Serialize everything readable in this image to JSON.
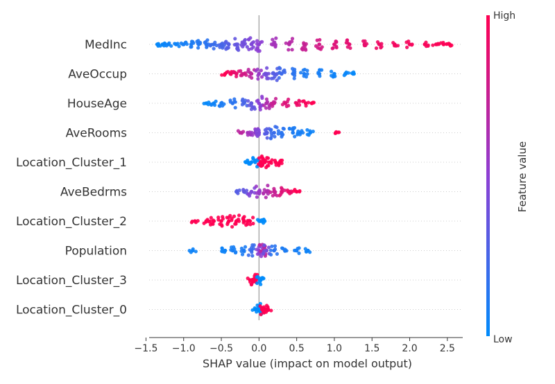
{
  "chart_data": {
    "type": "scatter",
    "subtype": "shap-beeswarm",
    "title": "",
    "xlabel": "SHAP value (impact on model output)",
    "ylabel": "",
    "xlim": [
      -1.55,
      2.75
    ],
    "xticks": [
      {
        "value": -1.5,
        "label": "−1.5"
      },
      {
        "value": -1.0,
        "label": "−1.0"
      },
      {
        "value": -0.5,
        "label": "−0.5"
      },
      {
        "value": 0.0,
        "label": "0.0"
      },
      {
        "value": 0.5,
        "label": "0.5"
      },
      {
        "value": 1.0,
        "label": "1.0"
      },
      {
        "value": 1.5,
        "label": "1.5"
      },
      {
        "value": 2.0,
        "label": "2.0"
      },
      {
        "value": 2.5,
        "label": "2.5"
      }
    ],
    "grid": false,
    "zero_line": true,
    "colorbar": {
      "label": "Feature value",
      "high_label": "High",
      "low_label": "Low",
      "low_color": "#008bfb",
      "mid_color": "#8d3fd4",
      "high_color": "#ff0052"
    },
    "features": [
      {
        "name": "MedInc",
        "points": [
          {
            "shap": -1.35,
            "value": 0.02
          },
          {
            "shap": -1.28,
            "value": 0.03
          },
          {
            "shap": -1.2,
            "value": 0.05
          },
          {
            "shap": -1.1,
            "value": 0.05
          },
          {
            "shap": -1.0,
            "value": 0.08
          },
          {
            "shap": -0.9,
            "value": 0.1
          },
          {
            "shap": -0.8,
            "value": 0.12
          },
          {
            "shap": -0.7,
            "value": 0.15
          },
          {
            "shap": -0.6,
            "value": 0.2
          },
          {
            "shap": -0.5,
            "value": 0.25
          },
          {
            "shap": -0.4,
            "value": 0.3
          },
          {
            "shap": -0.3,
            "value": 0.35
          },
          {
            "shap": -0.2,
            "value": 0.4
          },
          {
            "shap": -0.1,
            "value": 0.45
          },
          {
            "shap": 0.0,
            "value": 0.5
          },
          {
            "shap": 0.2,
            "value": 0.6
          },
          {
            "shap": 0.4,
            "value": 0.68
          },
          {
            "shap": 0.6,
            "value": 0.75
          },
          {
            "shap": 0.8,
            "value": 0.8
          },
          {
            "shap": 1.0,
            "value": 0.85
          },
          {
            "shap": 1.2,
            "value": 0.88
          },
          {
            "shap": 1.4,
            "value": 0.9
          },
          {
            "shap": 1.6,
            "value": 0.93
          },
          {
            "shap": 1.8,
            "value": 0.95
          },
          {
            "shap": 2.0,
            "value": 0.96
          },
          {
            "shap": 2.2,
            "value": 0.97
          },
          {
            "shap": 2.35,
            "value": 0.98
          },
          {
            "shap": 2.45,
            "value": 0.99
          },
          {
            "shap": 2.53,
            "value": 1.0
          }
        ]
      },
      {
        "name": "AveOccup",
        "points": [
          {
            "shap": -0.45,
            "value": 1.0
          },
          {
            "shap": -0.38,
            "value": 0.95
          },
          {
            "shap": -0.3,
            "value": 0.9
          },
          {
            "shap": -0.2,
            "value": 0.8
          },
          {
            "shap": -0.1,
            "value": 0.7
          },
          {
            "shap": 0.0,
            "value": 0.55
          },
          {
            "shap": 0.1,
            "value": 0.4
          },
          {
            "shap": 0.2,
            "value": 0.3
          },
          {
            "shap": 0.3,
            "value": 0.22
          },
          {
            "shap": 0.45,
            "value": 0.15
          },
          {
            "shap": 0.6,
            "value": 0.1
          },
          {
            "shap": 0.8,
            "value": 0.08
          },
          {
            "shap": 1.0,
            "value": 0.05
          },
          {
            "shap": 1.15,
            "value": 0.03
          },
          {
            "shap": 1.25,
            "value": 0.02
          }
        ]
      },
      {
        "name": "HouseAge",
        "points": [
          {
            "shap": -0.7,
            "value": 0.02
          },
          {
            "shap": -0.6,
            "value": 0.05
          },
          {
            "shap": -0.5,
            "value": 0.1
          },
          {
            "shap": -0.35,
            "value": 0.15
          },
          {
            "shap": -0.2,
            "value": 0.25
          },
          {
            "shap": -0.1,
            "value": 0.35
          },
          {
            "shap": 0.0,
            "value": 0.5
          },
          {
            "shap": 0.1,
            "value": 0.65
          },
          {
            "shap": 0.2,
            "value": 0.75
          },
          {
            "shap": 0.35,
            "value": 0.85
          },
          {
            "shap": 0.5,
            "value": 0.92
          },
          {
            "shap": 0.62,
            "value": 0.97
          },
          {
            "shap": 0.7,
            "value": 1.0
          }
        ]
      },
      {
        "name": "AveRooms",
        "points": [
          {
            "shap": -0.25,
            "value": 0.7
          },
          {
            "shap": -0.15,
            "value": 0.6
          },
          {
            "shap": -0.05,
            "value": 0.55
          },
          {
            "shap": 0.0,
            "value": 0.45
          },
          {
            "shap": 0.1,
            "value": 0.3
          },
          {
            "shap": 0.2,
            "value": 0.2
          },
          {
            "shap": 0.3,
            "value": 0.15
          },
          {
            "shap": 0.45,
            "value": 0.1
          },
          {
            "shap": 0.55,
            "value": 0.08
          },
          {
            "shap": 0.68,
            "value": 0.05
          },
          {
            "shap": 1.02,
            "value": 1.0
          }
        ]
      },
      {
        "name": "Location_Cluster_1",
        "points": [
          {
            "shap": -0.15,
            "value": 0.0
          },
          {
            "shap": -0.1,
            "value": 0.0
          },
          {
            "shap": -0.05,
            "value": 0.0
          },
          {
            "shap": 0.02,
            "value": 1.0
          },
          {
            "shap": 0.08,
            "value": 1.0
          },
          {
            "shap": 0.15,
            "value": 1.0
          },
          {
            "shap": 0.22,
            "value": 1.0
          },
          {
            "shap": 0.28,
            "value": 1.0
          }
        ]
      },
      {
        "name": "AveBedrms",
        "points": [
          {
            "shap": -0.3,
            "value": 0.3
          },
          {
            "shap": -0.2,
            "value": 0.35
          },
          {
            "shap": -0.1,
            "value": 0.45
          },
          {
            "shap": 0.0,
            "value": 0.55
          },
          {
            "shap": 0.1,
            "value": 0.65
          },
          {
            "shap": 0.2,
            "value": 0.75
          },
          {
            "shap": 0.3,
            "value": 0.85
          },
          {
            "shap": 0.4,
            "value": 0.92
          },
          {
            "shap": 0.5,
            "value": 1.0
          }
        ]
      },
      {
        "name": "Location_Cluster_2",
        "points": [
          {
            "shap": -0.85,
            "value": 1.0
          },
          {
            "shap": -0.7,
            "value": 1.0
          },
          {
            "shap": -0.6,
            "value": 1.0
          },
          {
            "shap": -0.5,
            "value": 1.0
          },
          {
            "shap": -0.4,
            "value": 1.0
          },
          {
            "shap": -0.3,
            "value": 1.0
          },
          {
            "shap": -0.2,
            "value": 1.0
          },
          {
            "shap": -0.12,
            "value": 1.0
          },
          {
            "shap": 0.02,
            "value": 0.0
          },
          {
            "shap": 0.04,
            "value": 0.0
          }
        ]
      },
      {
        "name": "Population",
        "points": [
          {
            "shap": -0.88,
            "value": 0.05
          },
          {
            "shap": -0.45,
            "value": 0.05
          },
          {
            "shap": -0.35,
            "value": 0.08
          },
          {
            "shap": -0.2,
            "value": 0.1
          },
          {
            "shap": -0.1,
            "value": 0.2
          },
          {
            "shap": 0.0,
            "value": 0.5
          },
          {
            "shap": 0.05,
            "value": 0.7
          },
          {
            "shap": 0.1,
            "value": 0.4
          },
          {
            "shap": 0.2,
            "value": 0.15
          },
          {
            "shap": 0.35,
            "value": 0.1
          },
          {
            "shap": 0.5,
            "value": 0.08
          },
          {
            "shap": 0.65,
            "value": 0.05
          }
        ]
      },
      {
        "name": "Location_Cluster_3",
        "points": [
          {
            "shap": -0.12,
            "value": 1.0
          },
          {
            "shap": -0.08,
            "value": 1.0
          },
          {
            "shap": -0.04,
            "value": 1.0
          },
          {
            "shap": 0.01,
            "value": 0.0
          },
          {
            "shap": 0.02,
            "value": 0.0
          }
        ]
      },
      {
        "name": "Location_Cluster_0",
        "points": [
          {
            "shap": -0.05,
            "value": 0.0
          },
          {
            "shap": -0.02,
            "value": 0.0
          },
          {
            "shap": 0.0,
            "value": 0.0
          },
          {
            "shap": 0.04,
            "value": 1.0
          },
          {
            "shap": 0.08,
            "value": 1.0
          },
          {
            "shap": 0.12,
            "value": 1.0
          }
        ]
      }
    ]
  }
}
